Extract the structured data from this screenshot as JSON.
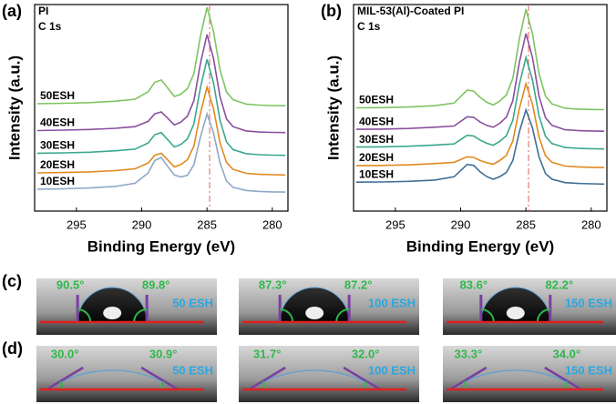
{
  "chart_data": [
    {
      "type": "line",
      "panel_label": "(a)",
      "title": "PI",
      "subtitle": "C 1s",
      "x_label": "Binding Energy (eV)",
      "y_label": "Intensity (a.u.)",
      "xlim": [
        298.2,
        278.8
      ],
      "xticks": [
        295,
        290,
        285,
        280
      ],
      "ylim": [
        0,
        100
      ],
      "ref_x": 284.8,
      "ref_color": "#e06060",
      "x": [
        298,
        296,
        294,
        292,
        290.5,
        289.5,
        289,
        288.5,
        288,
        287.5,
        287,
        286.5,
        286,
        285.5,
        285,
        284.5,
        284,
        283.5,
        283,
        282,
        281,
        280,
        279
      ],
      "series": [
        {
          "name": "10ESH",
          "color": "#8fa8c8",
          "values": [
            10.6,
            10.8,
            11.2,
            12,
            13.5,
            18.5,
            24.5,
            26,
            21.5,
            17.5,
            16.5,
            17.3,
            22.5,
            36,
            47,
            37.9,
            23.3,
            14.5,
            11.5,
            10,
            9.5,
            9.3,
            9.2
          ]
        },
        {
          "name": "20ESH",
          "color": "#e08a1e",
          "values": [
            18.5,
            18.7,
            19,
            19.6,
            20.5,
            23.3,
            27,
            28,
            24.7,
            21.4,
            22.5,
            24.9,
            31.5,
            47.5,
            60,
            49.6,
            33,
            23.5,
            20.2,
            18.3,
            17.8,
            17.6,
            17.5
          ]
        },
        {
          "name": "30ESH",
          "color": "#3aa88e",
          "values": [
            28,
            28.2,
            28.5,
            29.2,
            30,
            33,
            37,
            38,
            34.5,
            31,
            32.3,
            35,
            42.2,
            59.9,
            73.5,
            62.1,
            43.9,
            33.5,
            29.8,
            27.8,
            27.3,
            27.1,
            27
          ]
        },
        {
          "name": "40ESH",
          "color": "#8a4f9e",
          "values": [
            39,
            39.2,
            39.5,
            40.1,
            40.9,
            43.5,
            47.1,
            48,
            44.9,
            41.7,
            43.1,
            46,
            53.5,
            71.6,
            85.5,
            73.9,
            55.3,
            44.6,
            40.9,
            38.8,
            38.3,
            38.1,
            38
          ]
        },
        {
          "name": "50ESH",
          "color": "#7dc462",
          "values": [
            52,
            52.2,
            52.5,
            53.2,
            54.2,
            57.8,
            62.4,
            63.5,
            59.5,
            55.5,
            56.6,
            59.3,
            66.6,
            84.7,
            98.7,
            87,
            68.3,
            57.6,
            53.9,
            51.8,
            51.3,
            51.1,
            51
          ]
        }
      ]
    },
    {
      "type": "line",
      "panel_label": "(b)",
      "title": "MIL-53(Al)-Coated PI",
      "subtitle": "C 1s",
      "x_label": "Binding Energy (eV)",
      "y_label": "Intensity (a.u.)",
      "xlim": [
        298.2,
        278.8
      ],
      "xticks": [
        295,
        290,
        285,
        280
      ],
      "ylim": [
        0,
        100
      ],
      "ref_x": 284.8,
      "ref_color": "#e06060",
      "x": [
        298,
        296,
        294,
        292,
        290.5,
        289.5,
        289,
        288.5,
        288,
        287.5,
        287,
        286.5,
        286,
        285.5,
        285,
        284.5,
        284,
        283.5,
        283,
        282,
        281,
        280,
        279
      ],
      "series": [
        {
          "name": "10ESH",
          "color": "#3f6e96",
          "values": [
            14,
            14.1,
            14.4,
            15,
            16.6,
            22.6,
            22.1,
            19,
            16.7,
            15.4,
            16.7,
            18.7,
            24.5,
            38.5,
            49,
            40.3,
            26.3,
            18.2,
            15.4,
            13.8,
            13.4,
            13.2,
            13.1
          ]
        },
        {
          "name": "20ESH",
          "color": "#e08a1e",
          "values": [
            22,
            22.1,
            22.4,
            23,
            23.6,
            26.3,
            26,
            24.5,
            23.4,
            22.7,
            24.5,
            27,
            33.9,
            49.8,
            61.7,
            51.8,
            35.9,
            26.8,
            23.6,
            21.8,
            21.4,
            21.2,
            21.1
          ]
        },
        {
          "name": "30ESH",
          "color": "#3aa88e",
          "values": [
            31,
            31.1,
            31.4,
            32,
            32.5,
            36.7,
            36.4,
            34.3,
            32.8,
            31.9,
            33.8,
            36.5,
            44,
            61.4,
            74.4,
            63.6,
            46.2,
            36.2,
            32.7,
            30.8,
            30.4,
            30.2,
            30.1
          ]
        },
        {
          "name": "40ESH",
          "color": "#8a4f9e",
          "values": [
            39.6,
            39.7,
            40,
            40.6,
            41.2,
            45.7,
            45.4,
            43.1,
            41.5,
            40.6,
            42.5,
            45.5,
            53.5,
            72.1,
            86,
            74.4,
            55.8,
            45.2,
            41.5,
            39.4,
            39,
            38.8,
            38.7
          ]
        },
        {
          "name": "50ESH",
          "color": "#7dc462",
          "values": [
            50,
            50.1,
            50.4,
            51,
            52.3,
            58.6,
            58.1,
            55,
            52.7,
            51.4,
            53.3,
            56.2,
            64.3,
            83.5,
            97.8,
            85.9,
            66.7,
            55.7,
            51.9,
            49.8,
            49.4,
            49.2,
            49.1
          ]
        }
      ]
    }
  ],
  "contact_angle": [
    {
      "label": "(c)",
      "items": [
        {
          "left": "90.5°",
          "right": "89.8°",
          "sample": "50 ESH"
        },
        {
          "left": "87.3°",
          "right": "87.2°",
          "sample": "100 ESH"
        },
        {
          "left": "83.6°",
          "right": "82.2°",
          "sample": "150 ESH"
        }
      ]
    },
    {
      "label": "(d)",
      "items": [
        {
          "left": "30.0°",
          "right": "30.9°",
          "sample": "50 ESH"
        },
        {
          "left": "31.7°",
          "right": "32.0°",
          "sample": "100 ESH"
        },
        {
          "left": "33.3°",
          "right": "34.0°",
          "sample": "150 ESH"
        }
      ]
    }
  ]
}
